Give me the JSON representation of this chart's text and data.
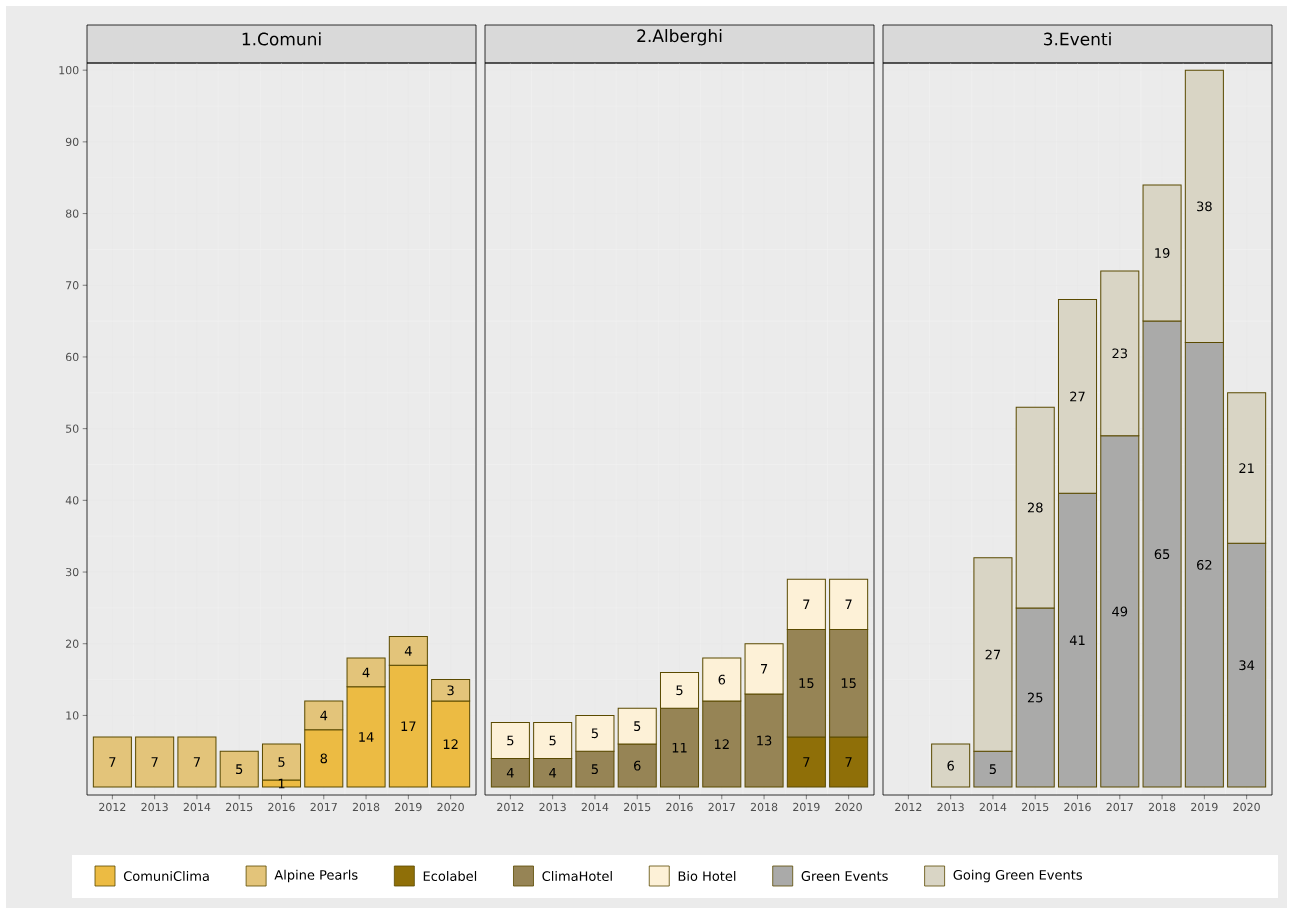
{
  "chart_data": [
    {
      "type": "bar",
      "title": "1.Comuni",
      "categories": [
        "2012",
        "2013",
        "2014",
        "2015",
        "2016",
        "2017",
        "2018",
        "2019",
        "2020"
      ],
      "stacked": true,
      "data_labels": true,
      "grid": true,
      "legend": "bottom",
      "ylim": [
        -1.1,
        101
      ],
      "yticks": [
        10,
        20,
        30,
        40,
        50,
        60,
        70,
        80,
        90,
        100
      ],
      "series": [
        {
          "name": "ComuniClima",
          "color": "#ecbb43",
          "values": [
            null,
            null,
            null,
            null,
            1,
            8,
            14,
            17,
            12
          ]
        },
        {
          "name": "Alpine Pearls",
          "color": "#e3c47a",
          "values": [
            7,
            7,
            7,
            5,
            5,
            4,
            4,
            4,
            3
          ]
        }
      ]
    },
    {
      "type": "bar",
      "title": "2.Alberghi",
      "categories": [
        "2012",
        "2013",
        "2014",
        "2015",
        "2016",
        "2017",
        "2018",
        "2019",
        "2020"
      ],
      "stacked": true,
      "data_labels": true,
      "grid": true,
      "legend": "bottom",
      "tick_labels": "x",
      "ylim": [
        -1.1,
        101
      ],
      "yticks": [
        10,
        20,
        30,
        40,
        50,
        60,
        70,
        80,
        90,
        100
      ],
      "series": [
        {
          "name": "Ecolabel",
          "color": "#8f6f08",
          "values": [
            null,
            null,
            null,
            null,
            null,
            null,
            null,
            7,
            7
          ]
        },
        {
          "name": "ClimaHotel",
          "color": "#968455",
          "values": [
            4,
            4,
            5,
            6,
            11,
            12,
            13,
            15,
            15
          ]
        },
        {
          "name": "Bio Hotel",
          "color": "#fdf1d7",
          "values": [
            5,
            5,
            5,
            5,
            5,
            6,
            7,
            7,
            7
          ]
        }
      ]
    },
    {
      "type": "bar",
      "title": "3.Eventi",
      "categories": [
        "2012",
        "2013",
        "2014",
        "2015",
        "2016",
        "2017",
        "2018",
        "2019",
        "2020"
      ],
      "stacked": true,
      "data_labels": true,
      "grid": true,
      "legend": "bottom",
      "tick_labels": "x",
      "ylim": [
        -1.1,
        101
      ],
      "yticks": [
        10,
        20,
        30,
        40,
        50,
        60,
        70,
        80,
        90,
        100
      ],
      "series": [
        {
          "name": "Green Events",
          "color": "#aaaaa9",
          "values": [
            null,
            null,
            5,
            25,
            41,
            49,
            65,
            62,
            34
          ]
        },
        {
          "name": "Going Green Events",
          "color": "#d9d5c5",
          "values": [
            null,
            6,
            27,
            28,
            27,
            23,
            19,
            38,
            21
          ]
        }
      ]
    }
  ]
}
